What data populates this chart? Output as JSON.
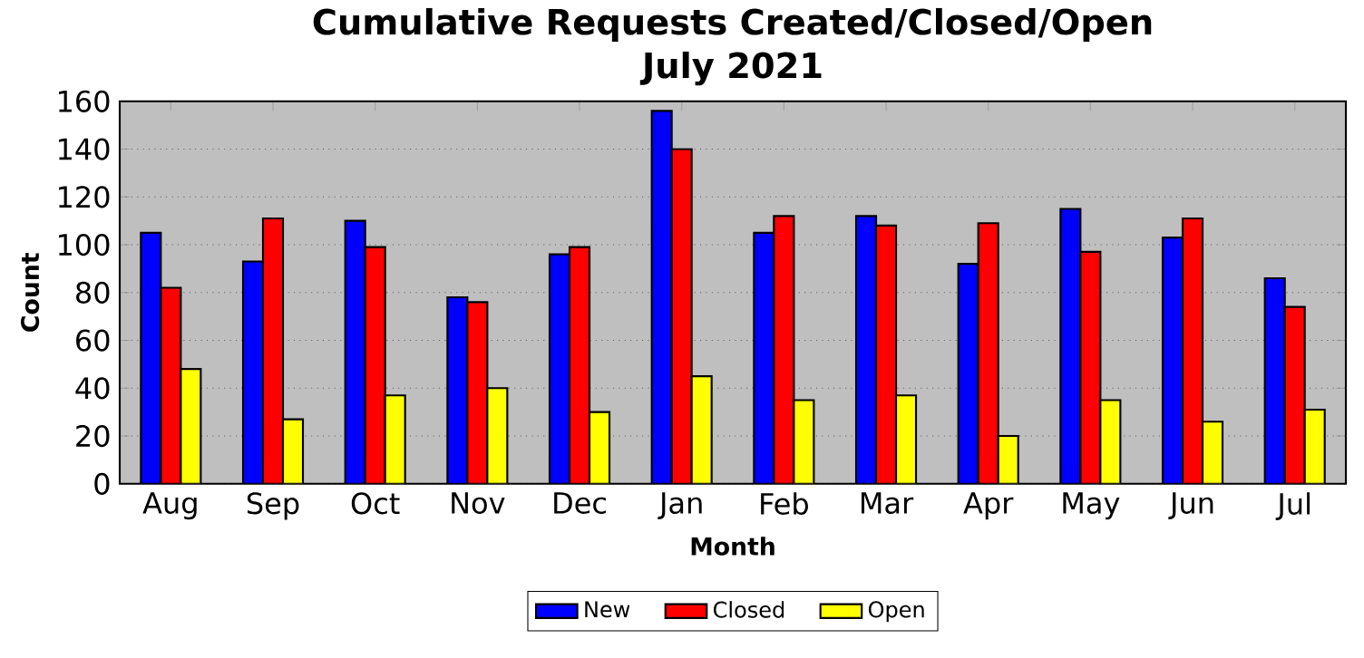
{
  "chart_data": {
    "type": "bar",
    "title": "Cumulative Requests Created/Closed/Open",
    "subtitle": "July 2021",
    "xlabel": "Month",
    "ylabel": "Count",
    "categories": [
      "Aug",
      "Sep",
      "Oct",
      "Nov",
      "Dec",
      "Jan",
      "Feb",
      "Mar",
      "Apr",
      "May",
      "Jun",
      "Jul"
    ],
    "series": [
      {
        "name": "New",
        "color": "#0000ff",
        "values": [
          105,
          93,
          110,
          78,
          96,
          156,
          105,
          112,
          92,
          115,
          103,
          86
        ]
      },
      {
        "name": "Closed",
        "color": "#ff0000",
        "values": [
          82,
          111,
          99,
          76,
          99,
          140,
          112,
          108,
          109,
          97,
          111,
          74
        ]
      },
      {
        "name": "Open",
        "color": "#ffff00",
        "values": [
          48,
          27,
          37,
          40,
          30,
          45,
          35,
          37,
          20,
          35,
          26,
          31
        ]
      }
    ],
    "ylim": [
      0,
      160
    ],
    "yticks": [
      0,
      20,
      40,
      60,
      80,
      100,
      120,
      140,
      160
    ],
    "grid": "y",
    "legend": "bottom"
  }
}
